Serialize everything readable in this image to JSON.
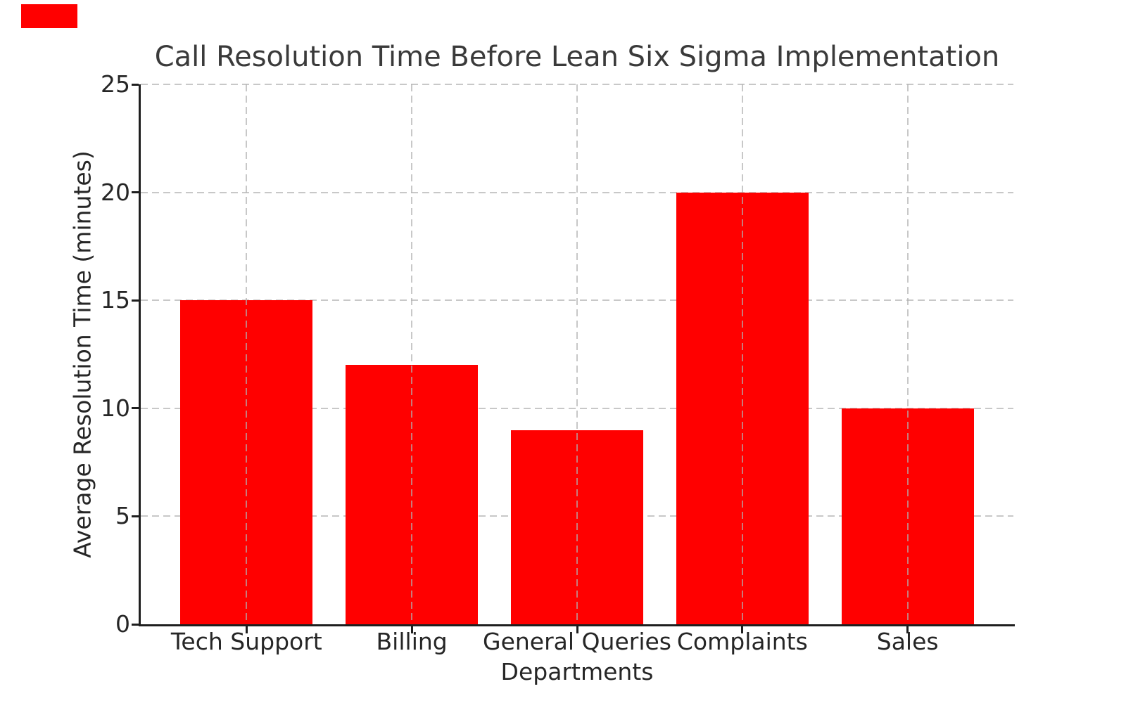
{
  "decorations": {
    "corner_marker_color": "#ff0000"
  },
  "chart_data": {
    "type": "bar",
    "title": "Call Resolution Time Before Lean Six Sigma Implementation",
    "xlabel": "Departments",
    "ylabel": "Average Resolution Time (minutes)",
    "categories": [
      "Tech Support",
      "Billing",
      "General Queries",
      "Complaints",
      "Sales"
    ],
    "values": [
      15,
      12,
      9,
      20,
      10
    ],
    "bar_color": "#ff0000",
    "ylim": [
      0,
      25
    ],
    "yticks": [
      0,
      5,
      10,
      15,
      20,
      25
    ],
    "grid": "dashed",
    "grid_color": "#b0b0b0",
    "legend": "none",
    "axis_color": "#1f1f1f",
    "text_color": "#262626",
    "title_color": "#3a3a3a"
  }
}
